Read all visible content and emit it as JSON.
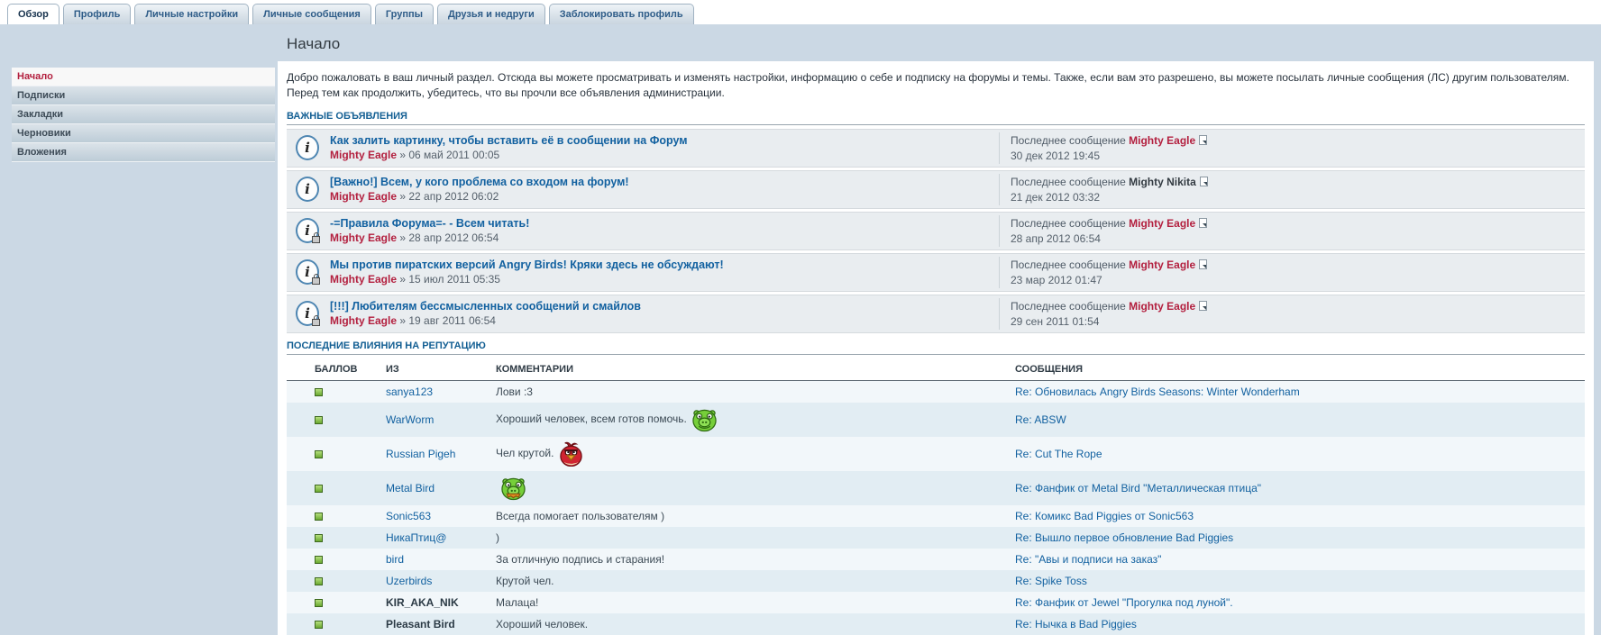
{
  "colors": {
    "page-bg": "#cbd8e4",
    "accent-red": "#b3203f",
    "link-blue": "#1261a0",
    "section-blue": "#135f93"
  },
  "tabs": [
    {
      "id": "overview",
      "label": "Обзор",
      "active": true
    },
    {
      "id": "profile",
      "label": "Профиль",
      "active": false
    },
    {
      "id": "personal-settings",
      "label": "Личные настройки",
      "active": false
    },
    {
      "id": "private-messages",
      "label": "Личные сообщения",
      "active": false
    },
    {
      "id": "groups",
      "label": "Группы",
      "active": false
    },
    {
      "id": "friends-foes",
      "label": "Друзья и недруги",
      "active": false
    },
    {
      "id": "block-profile",
      "label": "Заблокировать профиль",
      "active": false
    }
  ],
  "sidebar": {
    "items": [
      {
        "id": "home",
        "label": "Начало",
        "active": true
      },
      {
        "id": "subscriptions",
        "label": "Подписки",
        "active": false
      },
      {
        "id": "bookmarks",
        "label": "Закладки",
        "active": false
      },
      {
        "id": "drafts",
        "label": "Черновики",
        "active": false
      },
      {
        "id": "attachments",
        "label": "Вложения",
        "active": false
      }
    ]
  },
  "page": {
    "title": "Начало",
    "welcome": "Добро пожаловать в ваш личный раздел. Отсюда вы можете просматривать и изменять настройки, информацию о себе и подписку на форумы и темы. Также, если вам это разрешено, вы можете посылать личные сообщения (ЛС) другим пользователям. Перед тем как продолжить, убедитесь, что вы прочли все объявления администрации."
  },
  "announcements": {
    "section_title": "ВАЖНЫЕ ОБЪЯВЛЕНИЯ",
    "last_label": "Последнее сообщение",
    "meta_separator": "»",
    "items": [
      {
        "title": "Как залить картинку, чтобы вставить её в сообщении на Форум",
        "author": "Mighty Eagle",
        "date": "06 май 2011 00:05",
        "locked": false,
        "last_author": "Mighty Eagle",
        "last_author_style": "red",
        "last_date": "30 дек 2012 19:45"
      },
      {
        "title": "[Важно!] Всем, у кого проблема со входом на форум!",
        "author": "Mighty Eagle",
        "date": "22 апр 2012 06:02",
        "locked": false,
        "last_author": "Mighty Nikita",
        "last_author_style": "dark",
        "last_date": "21 дек 2012 03:32"
      },
      {
        "title": "-=Правила Форума=- - Всем читать!",
        "author": "Mighty Eagle",
        "date": "28 апр 2012 06:54",
        "locked": true,
        "last_author": "Mighty Eagle",
        "last_author_style": "red",
        "last_date": "28 апр 2012 06:54"
      },
      {
        "title": "Мы против пиратских версий Angry Birds! Кряки здесь не обсуждают!",
        "author": "Mighty Eagle",
        "date": "15 июл 2011 05:35",
        "locked": true,
        "last_author": "Mighty Eagle",
        "last_author_style": "red",
        "last_date": "23 мар 2012 01:47"
      },
      {
        "title": "[!!!] Любителям бессмысленных сообщений и смайлов",
        "author": "Mighty Eagle",
        "date": "19 авг 2011 06:54",
        "locked": true,
        "last_author": "Mighty Eagle",
        "last_author_style": "red",
        "last_date": "29 сен 2011 01:54"
      }
    ]
  },
  "reputation": {
    "section_title": "ПОСЛЕДНИЕ ВЛИЯНИЯ НА РЕПУТАЦИЮ",
    "columns": [
      "БАЛЛОВ",
      "ИЗ",
      "КОММЕНТАРИИ",
      "СООБЩЕНИЯ"
    ],
    "rows": [
      {
        "from": "sanya123",
        "from_style": "link",
        "comment": "Лови :3",
        "smiley": "none",
        "message": "Re: Обновилась Angry Birds Seasons: Winter Wonderham"
      },
      {
        "from": "WarWorm",
        "from_style": "link",
        "comment": "Хороший человек, всем готов помочь.",
        "smiley": "pig",
        "message": "Re: ABSW"
      },
      {
        "from": "Russian Pigeh",
        "from_style": "link",
        "comment": "Чел крутой.",
        "smiley": "bird",
        "message": "Re: Cut The Rope"
      },
      {
        "from": "Metal Bird",
        "from_style": "link",
        "comment": "",
        "smiley": "pig-moustache",
        "message": "Re: Фанфик от Metal Bird \"Металлическая птица\""
      },
      {
        "from": "Sonic563",
        "from_style": "link",
        "comment": "Всегда помогает пользователям )",
        "smiley": "none",
        "message": "Re: Комикс Bad Piggies от Sonic563"
      },
      {
        "from": "НикаПтиц@",
        "from_style": "link",
        "comment": ")",
        "smiley": "none",
        "message": "Re: Вышло первое обновление Bad Piggies"
      },
      {
        "from": "bird",
        "from_style": "link",
        "comment": "За отличную подпись и старания!",
        "smiley": "none",
        "message": "Re: \"Авы и подписи на заказ\""
      },
      {
        "from": "Uzerbirds",
        "from_style": "link",
        "comment": "Крутой чел.",
        "smiley": "none",
        "message": "Re: Spike Toss"
      },
      {
        "from": "KIR_AKA_NIK",
        "from_style": "bold",
        "comment": "Малаца!",
        "smiley": "none",
        "message": "Re: Фанфик от Jewel \"Прогулка под луной\"."
      },
      {
        "from": "Pleasant Bird",
        "from_style": "bold",
        "comment": "Хороший человек.",
        "smiley": "none",
        "message": "Re: Нычка в Bad Piggies"
      }
    ]
  }
}
